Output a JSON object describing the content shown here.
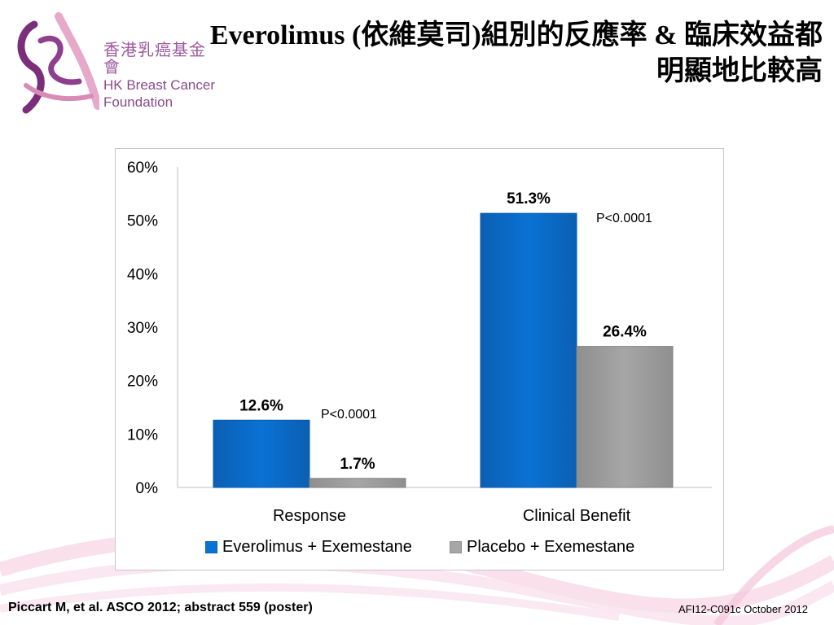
{
  "logo": {
    "name_cn": "香港乳癌基金會",
    "name_en_line1": "HK Breast Cancer",
    "name_en_line2": "Foundation"
  },
  "slide": {
    "title_line1": "Everolimus (依維莫司)組別的反應率 & 臨床效益都",
    "title_line2": "明顯地比較高",
    "citation": "Piccart M, et al. ASCO 2012; abstract 559 (poster)",
    "code": "AFI12-C091c October 2012"
  },
  "colors": {
    "series1": "#0a72d4",
    "series2": "#a6a6a6",
    "brand": "#8a4a8c"
  },
  "chart_data": {
    "type": "bar",
    "categories": [
      "Response",
      "Clinical Benefit"
    ],
    "series": [
      {
        "name": "Everolimus + Exemestane",
        "values": [
          12.6,
          51.3
        ],
        "labels": [
          "12.6%",
          "51.3%"
        ]
      },
      {
        "name": "Placebo + Exemestane",
        "values": [
          1.7,
          26.4
        ],
        "labels": [
          "1.7%",
          "26.4%"
        ]
      }
    ],
    "ylim": [
      0,
      60
    ],
    "yticks": [
      "0%",
      "10%",
      "20%",
      "30%",
      "40%",
      "50%",
      "60%"
    ],
    "annotations": [
      "P<0.0001",
      "P<0.0001"
    ],
    "grid": false,
    "legend_position": "bottom"
  }
}
